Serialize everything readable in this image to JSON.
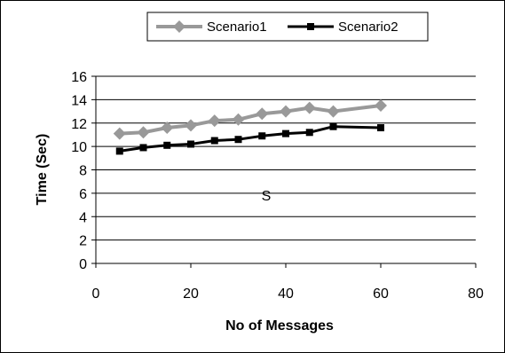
{
  "chart_data": {
    "type": "line",
    "xlabel": "No of Messages",
    "ylabel": "Time (Sec)",
    "xlim": [
      0,
      80
    ],
    "ylim": [
      0,
      16
    ],
    "xticks": [
      "0",
      "20",
      "40",
      "60",
      "80"
    ],
    "yticks": [
      "0",
      "2",
      "4",
      "6",
      "8",
      "10",
      "12",
      "14",
      "16"
    ],
    "grid": "horizontal",
    "legend_position": "top-center",
    "annotation": "S",
    "series": [
      {
        "name": "Scenario1",
        "color": "#999999",
        "marker": "diamond",
        "x": [
          5,
          10,
          15,
          20,
          25,
          30,
          35,
          40,
          45,
          50,
          60
        ],
        "y": [
          11.1,
          11.2,
          11.6,
          11.8,
          12.2,
          12.3,
          12.8,
          13.0,
          13.3,
          13.0,
          13.5
        ]
      },
      {
        "name": "Scenario2",
        "color": "#000000",
        "marker": "square",
        "x": [
          5,
          10,
          15,
          20,
          25,
          30,
          35,
          40,
          45,
          50,
          60
        ],
        "y": [
          9.6,
          9.9,
          10.1,
          10.2,
          10.5,
          10.6,
          10.9,
          11.1,
          11.2,
          11.7,
          11.6
        ]
      }
    ]
  }
}
